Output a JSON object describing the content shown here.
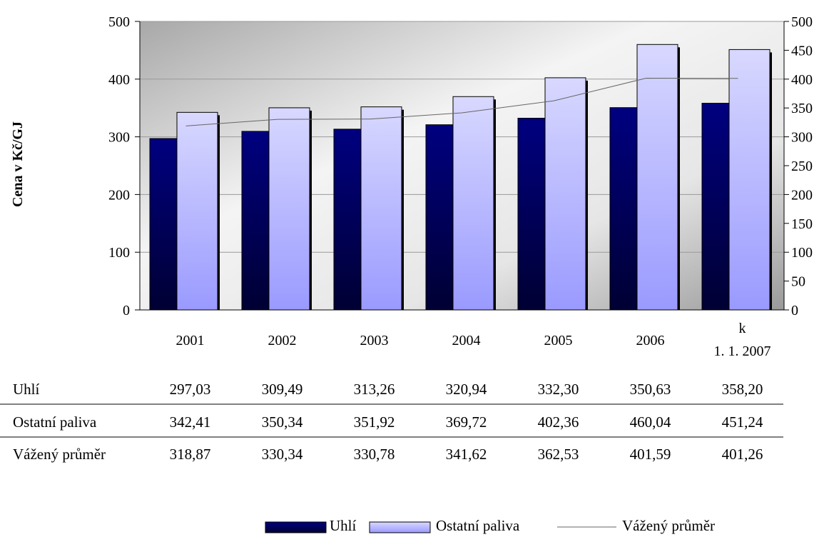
{
  "chart_data": {
    "type": "bar",
    "title": "",
    "ylabel": "Cena v Kč/GJ",
    "ylim": [
      0,
      500
    ],
    "y_ticks": [
      0,
      100,
      200,
      300,
      400,
      500
    ],
    "y2lim": [
      0,
      500
    ],
    "y2_ticks": [
      0,
      50,
      100,
      150,
      200,
      250,
      300,
      350,
      400,
      450,
      500
    ],
    "categories": [
      {
        "lines": [
          "2001"
        ]
      },
      {
        "lines": [
          "2002"
        ]
      },
      {
        "lines": [
          "2003"
        ]
      },
      {
        "lines": [
          "2004"
        ]
      },
      {
        "lines": [
          "2005"
        ]
      },
      {
        "lines": [
          "2006"
        ]
      },
      {
        "lines": [
          "k",
          "1. 1. 2007"
        ]
      }
    ],
    "series": [
      {
        "name": "Uhlí",
        "kind": "bar",
        "color": "#000066",
        "values": [
          297.03,
          309.49,
          313.26,
          320.94,
          332.3,
          350.63,
          358.2
        ],
        "labels": [
          "297,03",
          "309,49",
          "313,26",
          "320,94",
          "332,30",
          "350,63",
          "358,20"
        ]
      },
      {
        "name": "Ostatní paliva",
        "kind": "bar",
        "color": "#c8c8ff",
        "values": [
          342.41,
          350.34,
          351.92,
          369.72,
          402.36,
          460.04,
          451.24
        ],
        "labels": [
          "342,41",
          "350,34",
          "351,92",
          "369,72",
          "402,36",
          "460,04",
          "451,24"
        ]
      },
      {
        "name": "Vážený průměr",
        "kind": "line",
        "color": "#666666",
        "values": [
          318.87,
          330.34,
          330.78,
          341.62,
          362.53,
          401.59,
          401.26
        ],
        "labels": [
          "318,87",
          "330,34",
          "330,78",
          "341,62",
          "362,53",
          "401,59",
          "401,26"
        ]
      }
    ],
    "grid": true,
    "legend": "bottom"
  }
}
